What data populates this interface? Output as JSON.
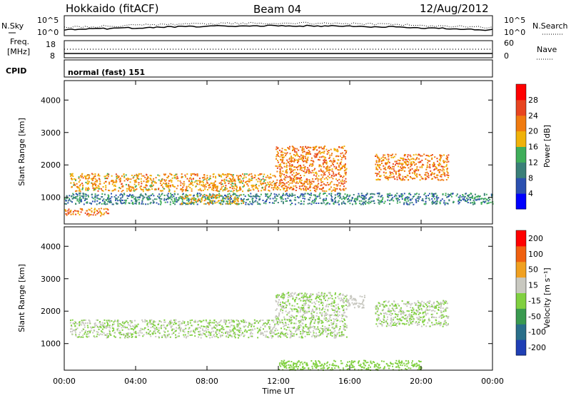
{
  "header": {
    "station": "Hokkaido (fitACF)",
    "beam": "Beam 04",
    "date": "12/Aug/2012"
  },
  "nsky_panel": {
    "left_label": "N.Sky",
    "right_label": "N.Search",
    "left_ticks": [
      "10^5",
      "10^0"
    ],
    "right_ticks": [
      "10^5",
      "10^0"
    ]
  },
  "freq_panel": {
    "left_label_1": "Freq.",
    "left_label_2": "[MHz]",
    "right_label": "Nave",
    "left_ticks": [
      "18",
      "8"
    ],
    "right_ticks": [
      "60",
      "0"
    ]
  },
  "cpid_panel": {
    "label": "CPID",
    "text": "normal (fast) 151"
  },
  "power_panel": {
    "ylabel": "Slant Range [km]",
    "colorbar_label": "Power [dB]",
    "colorbar_ticks": [
      "28",
      "24",
      "20",
      "16",
      "12",
      "8",
      "4"
    ],
    "colors": [
      "#0000ff",
      "#2b50b0",
      "#3a7f78",
      "#3fae5a",
      "#f0b20a",
      "#f07b10",
      "#e84520",
      "#ff0000"
    ]
  },
  "velocity_panel": {
    "ylabel": "Slant Range [km]",
    "colorbar_label": "Velocity [m s⁻¹]",
    "colorbar_ticks": [
      "200",
      "100",
      "50",
      "15",
      "-15",
      "-50",
      "-100",
      "-200"
    ],
    "colors": [
      "#1f3fb5",
      "#2a6f8a",
      "#3a9a50",
      "#80d040",
      "#c8c8c0",
      "#f0a020",
      "#f06010",
      "#ff0000"
    ]
  },
  "xaxis": {
    "label": "Time UT",
    "ticks": [
      "00:00",
      "04:00",
      "08:00",
      "12:00",
      "16:00",
      "20:00",
      "00:00"
    ]
  },
  "chart_data": [
    {
      "type": "heatmap",
      "name": "Power",
      "xlabel": "Time UT",
      "ylabel": "Slant Range [km]",
      "xlim": [
        0,
        24
      ],
      "ylim": [
        180,
        4600
      ],
      "yticks": [
        1000,
        2000,
        3000,
        4000
      ],
      "colorbar": {
        "label": "Power [dB]",
        "ticks": [
          4,
          8,
          12,
          16,
          20,
          24,
          28
        ],
        "range": [
          0,
          32
        ]
      },
      "bands": [
        {
          "x": [
            0.3,
            11.8
          ],
          "range": [
            1200,
            1750
          ],
          "level": 20
        },
        {
          "x": [
            0.0,
            24.0
          ],
          "range": [
            800,
            1150
          ],
          "level": 10
        },
        {
          "x": [
            11.8,
            15.8
          ],
          "range": [
            1200,
            2600
          ],
          "level": 22
        },
        {
          "x": [
            17.4,
            21.5
          ],
          "range": [
            1550,
            2350
          ],
          "level": 22
        },
        {
          "x": [
            0.0,
            2.5
          ],
          "range": [
            450,
            680
          ],
          "level": 22
        },
        {
          "x": [
            6.5,
            10.0
          ],
          "range": [
            800,
            1100
          ],
          "level": 18
        }
      ]
    },
    {
      "type": "heatmap",
      "name": "Velocity",
      "xlabel": "Time UT",
      "ylabel": "Slant Range [km]",
      "xlim": [
        0,
        24
      ],
      "ylim": [
        180,
        4600
      ],
      "yticks": [
        1000,
        2000,
        3000,
        4000
      ],
      "colorbar": {
        "label": "Velocity [m s⁻¹]",
        "ticks": [
          -200,
          -100,
          -50,
          -15,
          15,
          50,
          100,
          200
        ],
        "range": [
          -250,
          250
        ]
      },
      "bands": [
        {
          "x": [
            0.3,
            11.8
          ],
          "range": [
            1200,
            1750
          ],
          "level": 0
        },
        {
          "x": [
            11.8,
            15.8
          ],
          "range": [
            1200,
            2600
          ],
          "level": 0
        },
        {
          "x": [
            17.4,
            21.5
          ],
          "range": [
            1550,
            2350
          ],
          "level": 0
        },
        {
          "x": [
            15.8,
            16.8
          ],
          "range": [
            2100,
            2500
          ],
          "level": 30
        },
        {
          "x": [
            12.0,
            20.0
          ],
          "range": [
            200,
            500
          ],
          "level": -40
        }
      ]
    }
  ]
}
